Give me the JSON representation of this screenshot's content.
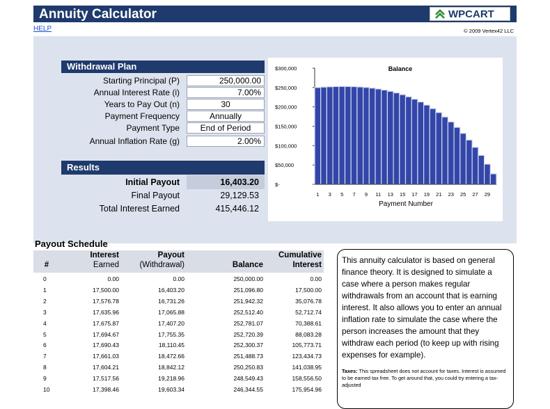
{
  "header": {
    "title": "Annuity Calculator",
    "logo": "WPCART",
    "help": "HELP",
    "copyright": "© 2009 Vertex42 LLC"
  },
  "withdrawal_plan": {
    "title": "Withdrawal Plan",
    "fields": [
      {
        "label": "Starting Principal (P)",
        "value": "250,000.00"
      },
      {
        "label": "Annual Interest Rate (i)",
        "value": "7.00%"
      },
      {
        "label": "Years to Pay Out (n)",
        "value": "30"
      },
      {
        "label": "Payment Frequency",
        "value": "Annually"
      },
      {
        "label": "Payment Type",
        "value": "End of Period"
      },
      {
        "label": "Annual Inflation Rate (g)",
        "value": "2.00%"
      }
    ]
  },
  "results": {
    "title": "Results",
    "rows": [
      {
        "label": "Initial Payout",
        "value": "16,403.20"
      },
      {
        "label": "Final Payout",
        "value": "29,129.53"
      },
      {
        "label": "Total Interest Earned",
        "value": "415,446.12"
      }
    ]
  },
  "chart_data": {
    "type": "bar",
    "title": "Balance",
    "x_label": "Payment Number",
    "categories": [
      1,
      null,
      3,
      null,
      5,
      null,
      7,
      null,
      9,
      null,
      11,
      null,
      13,
      null,
      15,
      null,
      17,
      null,
      19,
      null,
      21,
      null,
      23,
      null,
      25,
      null,
      27,
      null,
      29,
      null
    ],
    "values": [
      250000,
      251096.8,
      251942.32,
      252512.4,
      252781.07,
      252720.39,
      252300.37,
      251488.73,
      250250.83,
      248549.43,
      246344.55,
      243593.27,
      240249.49,
      236263.73,
      231582.91,
      226150.04,
      219904,
      212779.21,
      204705.32,
      195606.89,
      185403.02,
      174006.95,
      161325.68,
      147259.48,
      131701.46,
      114537.06,
      95643.48,
      74889.13,
      52132.99,
      27223.95
    ],
    "color": "#3346a8",
    "ylim": [
      0,
      300000
    ],
    "yticks": [
      {
        "value": 0,
        "label": "$-"
      },
      {
        "value": 50000,
        "label": "$50,000"
      },
      {
        "value": 100000,
        "label": "$100,000"
      },
      {
        "value": 150000,
        "label": "$150,000"
      },
      {
        "value": 200000,
        "label": "$200,000"
      },
      {
        "value": 250000,
        "label": "$250,000"
      },
      {
        "value": 300000,
        "label": "$300,000"
      }
    ]
  },
  "payout_schedule": {
    "title": "Payout Schedule",
    "columns": [
      [
        "#"
      ],
      [
        "Interest",
        "Earned"
      ],
      [
        "Payout",
        "(Withdrawal)"
      ],
      [
        "Balance"
      ],
      [
        "Cumulative",
        "Interest"
      ]
    ],
    "rows": [
      [
        "0",
        "0.00",
        "0.00",
        "250,000.00",
        "0.00"
      ],
      [
        "1",
        "17,500.00",
        "16,403.20",
        "251,096.80",
        "17,500.00"
      ],
      [
        "2",
        "17,576.78",
        "16,731.26",
        "251,942.32",
        "35,076.78"
      ],
      [
        "3",
        "17,635.96",
        "17,065.88",
        "252,512.40",
        "52,712.74"
      ],
      [
        "4",
        "17,675.87",
        "17,407.20",
        "252,781.07",
        "70,388.61"
      ],
      [
        "5",
        "17,694.67",
        "17,755.35",
        "252,720.39",
        "88,083.28"
      ],
      [
        "6",
        "17,690.43",
        "18,110.45",
        "252,300.37",
        "105,773.71"
      ],
      [
        "7",
        "17,661.03",
        "18,472.66",
        "251,488.73",
        "123,434.73"
      ],
      [
        "8",
        "17,604.21",
        "18,842.12",
        "250,250.83",
        "141,038.95"
      ],
      [
        "9",
        "17,517.56",
        "19,218.96",
        "248,549.43",
        "158,556.50"
      ],
      [
        "10",
        "17,398.46",
        "19,603.34",
        "246,344.55",
        "175,954.96"
      ]
    ]
  },
  "note": {
    "text": "This annuity calculator is based on general finance theory. It is designed to simulate a case where a person makes regular withdrawals from an account that is earning interest. It also allows you to enter an annual inflation rate to simulate the case where the person increases the amount that they withdraw each period (to keep up with rising expenses for example).",
    "taxes_label": "Taxes:",
    "taxes_text": "This spreadsheet does not account for taxes. Interest is assumed to be earned tax free. To get around that, you could try entering a tax-adjusted"
  }
}
